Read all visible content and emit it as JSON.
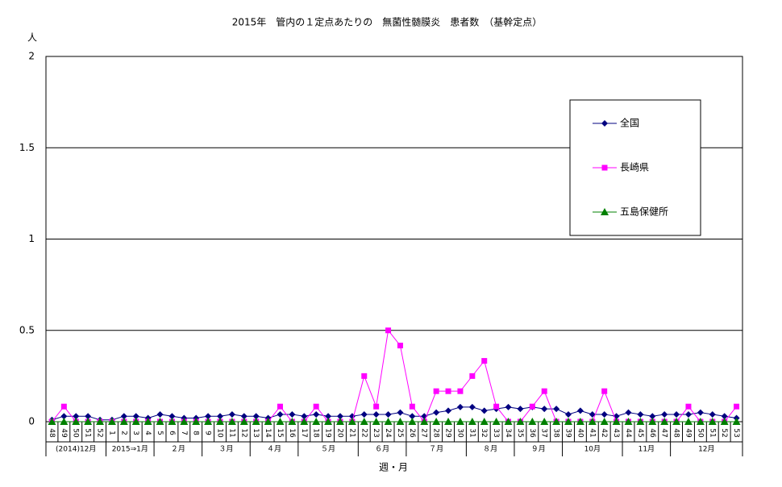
{
  "chart_data": {
    "type": "line",
    "title": "2015年　管内の１定点あたりの　無菌性髄膜炎　患者数　（基幹定点）",
    "y_label": "人",
    "x_label": "週・月",
    "categories": [
      "48",
      "49",
      "50",
      "51",
      "52",
      "1",
      "2",
      "3",
      "4",
      "5",
      "6",
      "7",
      "8",
      "9",
      "10",
      "11",
      "12",
      "13",
      "14",
      "15",
      "16",
      "17",
      "18",
      "19",
      "20",
      "21",
      "22",
      "23",
      "24",
      "25",
      "26",
      "27",
      "28",
      "29",
      "30",
      "31",
      "32",
      "33",
      "34",
      "35",
      "36",
      "37",
      "38",
      "39",
      "40",
      "41",
      "42",
      "43",
      "44",
      "45",
      "46",
      "47",
      "48",
      "49",
      "50",
      "51",
      "52",
      "53"
    ],
    "x_groups": [
      {
        "label": "(2014)12月",
        "span": 5
      },
      {
        "label": "2015⇒1月",
        "span": 4
      },
      {
        "label": "２月",
        "span": 4
      },
      {
        "label": "３月",
        "span": 4
      },
      {
        "label": "４月",
        "span": 4
      },
      {
        "label": "５月",
        "span": 5
      },
      {
        "label": "６月",
        "span": 4
      },
      {
        "label": "７月",
        "span": 5
      },
      {
        "label": "８月",
        "span": 4
      },
      {
        "label": "９月",
        "span": 4
      },
      {
        "label": "10月",
        "span": 5
      },
      {
        "label": "11月",
        "span": 4
      },
      {
        "label": "12月",
        "span": 6
      }
    ],
    "series": [
      {
        "name": "全国",
        "color": "#000080",
        "marker": "diamond",
        "values": [
          0.01,
          0.03,
          0.03,
          0.03,
          0.01,
          0.01,
          0.03,
          0.03,
          0.02,
          0.04,
          0.03,
          0.02,
          0.02,
          0.03,
          0.03,
          0.04,
          0.03,
          0.03,
          0.02,
          0.04,
          0.04,
          0.03,
          0.04,
          0.03,
          0.03,
          0.03,
          0.04,
          0.04,
          0.04,
          0.05,
          0.03,
          0.03,
          0.05,
          0.06,
          0.08,
          0.08,
          0.06,
          0.07,
          0.08,
          0.07,
          0.08,
          0.07,
          0.07,
          0.04,
          0.06,
          0.04,
          0.04,
          0.03,
          0.05,
          0.04,
          0.03,
          0.04,
          0.04,
          0.04,
          0.05,
          0.04,
          0.03,
          0.02
        ]
      },
      {
        "name": "長崎県",
        "color": "#ff00ff",
        "marker": "square",
        "values": [
          0,
          0.083,
          0,
          0,
          0,
          0,
          0,
          0,
          0,
          0,
          0,
          0,
          0,
          0,
          0,
          0,
          0,
          0,
          0,
          0.083,
          0,
          0,
          0.083,
          0,
          0,
          0,
          0.25,
          0.083,
          0.5,
          0.417,
          0.083,
          0,
          0.167,
          0.167,
          0.167,
          0.25,
          0.333,
          0.083,
          0,
          0,
          0.083,
          0.167,
          0,
          0,
          0,
          0,
          0.167,
          0,
          0,
          0,
          0,
          0,
          0,
          0.083,
          0,
          0,
          0,
          0.083
        ]
      },
      {
        "name": "五島保健所",
        "color": "#008000",
        "marker": "triangle",
        "values": [
          0,
          0,
          0,
          0,
          0,
          0,
          0,
          0,
          0,
          0,
          0,
          0,
          0,
          0,
          0,
          0,
          0,
          0,
          0,
          0,
          0,
          0,
          0,
          0,
          0,
          0,
          0,
          0,
          0,
          0,
          0,
          0,
          0,
          0,
          0,
          0,
          0,
          0,
          0,
          0,
          0,
          0,
          0,
          0,
          0,
          0,
          0,
          0,
          0,
          0,
          0,
          0,
          0,
          0,
          0,
          0,
          0,
          0
        ]
      }
    ],
    "ylim": [
      0,
      2
    ],
    "yticks": [
      0,
      0.5,
      1,
      1.5,
      2
    ],
    "grid": true,
    "legend": "upper right"
  }
}
